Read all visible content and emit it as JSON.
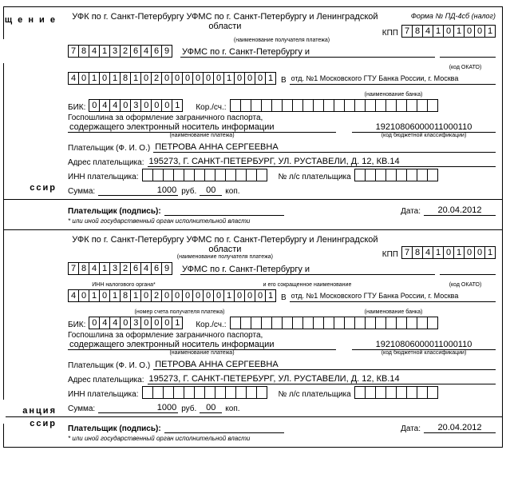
{
  "form_number": "Форма № ПД-4сб (налог)",
  "recipient_title": "УФК по г. Санкт-Петербургу УФМС по г. Санкт-Петербургу и Ленинградской области",
  "recipient_sub": "(наименование получателя платежа)",
  "kpp_label": "КПП",
  "kpp": [
    "7",
    "8",
    "4",
    "1",
    "0",
    "1",
    "0",
    "0",
    "1"
  ],
  "inn": [
    "7",
    "8",
    "4",
    "1",
    "3",
    "2",
    "6",
    "4",
    "6",
    "9"
  ],
  "inn_sub": "ИНН налогового органа*",
  "recipient_short_label": "УФМС по г. Санкт-Петербургу и",
  "recipient_short_sub": "и его сокращенное наименование",
  "okato_sub": "(код ОКАТО)",
  "account": [
    "4",
    "0",
    "1",
    "0",
    "1",
    "8",
    "1",
    "0",
    "2",
    "0",
    "0",
    "0",
    "0",
    "0",
    "0",
    "1",
    "0",
    "0",
    "0",
    "1"
  ],
  "account_sub": "(номер счета получателя платежа)",
  "in_label": "В",
  "bank": "отд. №1 Московского ГТУ Банка России, г. Москва",
  "bank_sub": "(наименование банка)",
  "bik_label": "БИК:",
  "bik": [
    "0",
    "4",
    "4",
    "0",
    "3",
    "0",
    "0",
    "0",
    "1"
  ],
  "corr_label": "Кор./сч.:",
  "purpose_line1": "Госпошлина за оформление заграничного паспорта,",
  "purpose_line2": "содержащего электронный носитель информации",
  "purpose_sub": "(наименование платежа)",
  "kbk": "19210806000011000110",
  "kbk_sub": "(код бюджетной классификации)",
  "payer_label": "Плательщик (Ф. И. О.)",
  "payer_name": "ПЕТРОВА АННА СЕРГЕЕВНА",
  "addr_label": "Адрес плательщика:",
  "addr": "195273, Г. САНКТ-ПЕТЕРБУРГ, УЛ. РУСТАВЕЛИ, Д. 12, КВ.14",
  "inn_payer_label": "ИНН плательщика:",
  "ls_label": "№ л/с плательщика",
  "sum_label": "Сумма:",
  "sum_rub": "1000",
  "rub_label": "руб.",
  "sum_kop": "00",
  "kop_label": "коп.",
  "sign_label": "Плательщик (подпись):",
  "date_label": "Дата:",
  "date": "20.04.2012",
  "footnote": "* или иной государственный орган исполнительной власти",
  "side1a": "щ е н и е",
  "side1b": "ссир",
  "side2a": "анция",
  "side2b": "ссир"
}
